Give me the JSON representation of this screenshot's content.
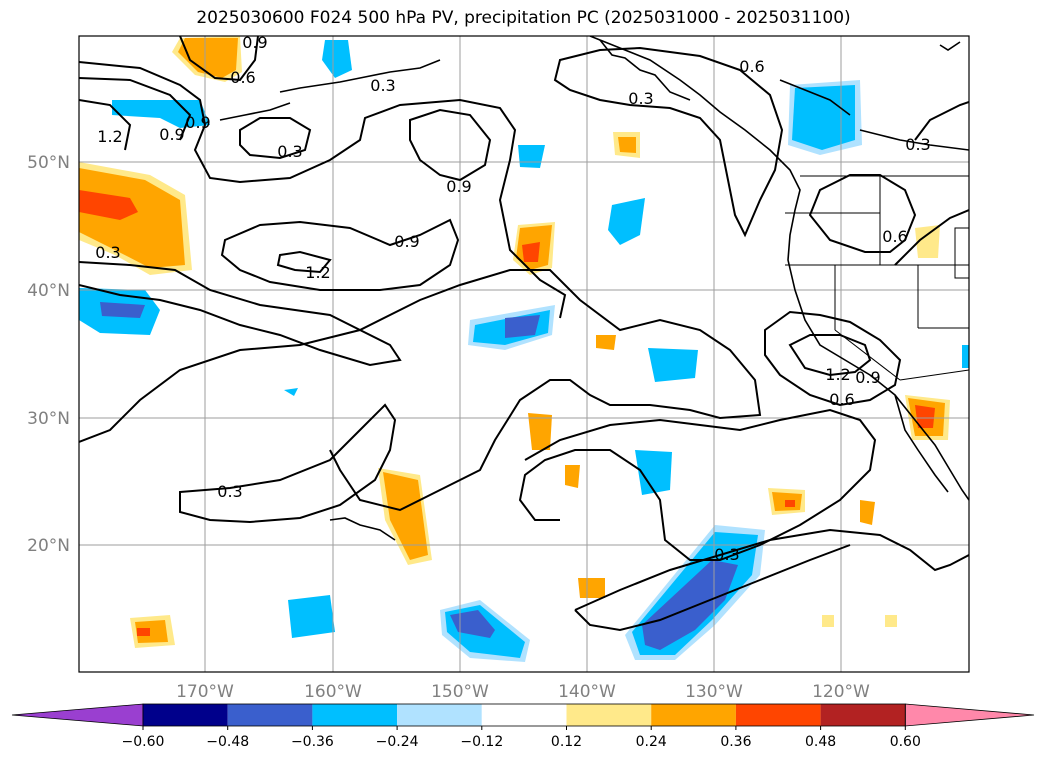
{
  "title": "2025030600 F024 500 hPa PV, precipitation PC (2025031000 - 2025031100)",
  "map": {
    "lat_labels": [
      "20°N",
      "30°N",
      "40°N",
      "50°N"
    ],
    "lon_labels": [
      "170°W",
      "160°W",
      "150°W",
      "140°W",
      "130°W",
      "120°W"
    ],
    "contour_labels": [
      "0.9",
      "0.6",
      "0.3",
      "0.6",
      "0.3",
      "1.2",
      "0.9",
      "0.9",
      "0.3",
      "0.9",
      "0.9",
      "1.2",
      "0.3",
      "0.3",
      "0.6",
      "0.3",
      "1.2",
      "0.9",
      "0.6",
      "0.3"
    ]
  },
  "colorbar": {
    "ticks": [
      "−0.60",
      "−0.48",
      "−0.36",
      "−0.24",
      "−0.12",
      "0.12",
      "0.24",
      "0.36",
      "0.48",
      "0.60"
    ],
    "colors": [
      "#9a3fd0",
      "#00008b",
      "#3a5fcd",
      "#00bfff",
      "#b0e2ff",
      "#ffffff",
      "#ffe98a",
      "#ffa500",
      "#ff4500",
      "#b22222",
      "#ff88aa"
    ]
  }
}
